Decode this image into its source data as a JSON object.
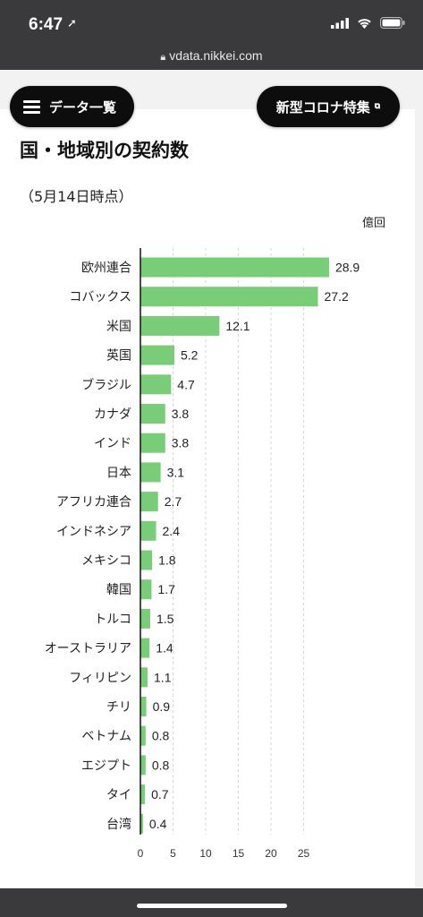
{
  "status_bar": {
    "time": "6:47",
    "location_arrow": "➚"
  },
  "browser": {
    "url": "vdata.nikkei.com"
  },
  "nav": {
    "data_list_button": "データ一覧",
    "covid_special_button": "新型コロナ特集"
  },
  "chart_data": {
    "type": "bar",
    "orientation": "horizontal",
    "title": "国・地域別の契約数",
    "subtitle": "（5月14日時点）",
    "unit": "億回",
    "categories": [
      "欧州連合",
      "コバックス",
      "米国",
      "英国",
      "ブラジル",
      "カナダ",
      "インド",
      "日本",
      "アフリカ連合",
      "インドネシア",
      "メキシコ",
      "韓国",
      "トルコ",
      "オーストラリア",
      "フィリピン",
      "チリ",
      "ベトナム",
      "エジプト",
      "タイ",
      "台湾"
    ],
    "values": [
      28.9,
      27.2,
      12.1,
      5.2,
      4.7,
      3.8,
      3.8,
      3.1,
      2.7,
      2.4,
      1.8,
      1.7,
      1.5,
      1.4,
      1.1,
      0.9,
      0.8,
      0.8,
      0.7,
      0.4
    ],
    "value_labels": [
      "28.9",
      "27.2",
      "12.1",
      "5.2",
      "4.7",
      "3.8",
      "3.8",
      "3.1",
      "2.7",
      "2.4",
      "1.8",
      "1.7",
      "1.5",
      "1.4",
      "1.1",
      "0.9",
      "0.8",
      "0.8",
      "0.7",
      "0.4"
    ],
    "xticks": [
      "0",
      "5",
      "10",
      "15",
      "20",
      "25"
    ],
    "xlim": [
      0,
      30
    ],
    "grid": "vertical dashed",
    "bar_color": "#7acd78"
  }
}
